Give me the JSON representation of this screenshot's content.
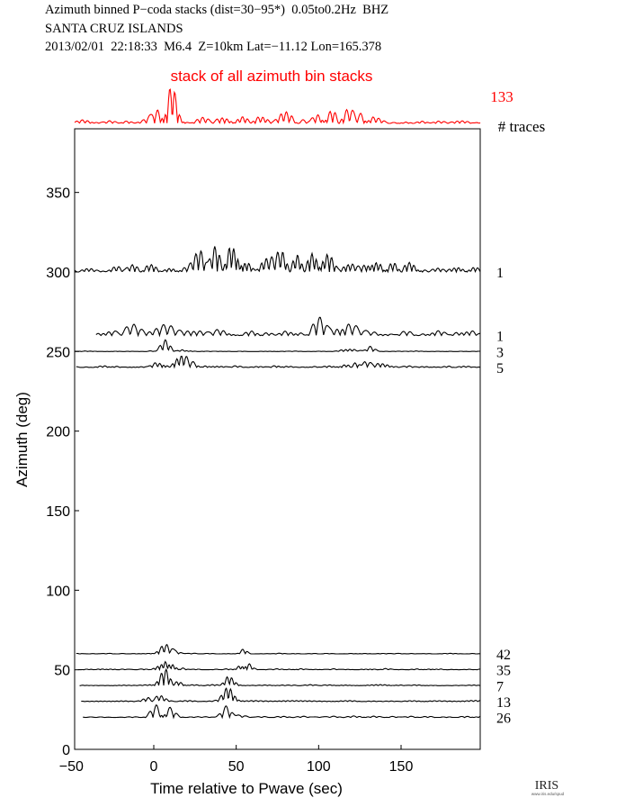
{
  "header": {
    "line1": "Azimuth binned P−coda stacks (dist=30−95*)  0.05to0.2Hz  BHZ",
    "line2": "SANTA CRUZ ISLANDS",
    "line3": "2013/02/01  22:18:33  M6.4  Z=10km Lat=−11.12 Lon=165.378"
  },
  "top_stack": {
    "label": "stack of all azimuth bin stacks",
    "count": "133",
    "count_header": "# traces",
    "color": "#ff0000"
  },
  "logo": {
    "text": "IRIS",
    "small": "www.iris.edu/spud"
  },
  "chart_data": {
    "type": "line",
    "title": "",
    "xlabel": "Time relative to Pwave (sec)",
    "ylabel": "Azimuth (deg)",
    "xlim": [
      -48,
      198
    ],
    "ylim": [
      0,
      390
    ],
    "xticks": [
      -50,
      0,
      50,
      100,
      150
    ],
    "yticks": [
      0,
      50,
      100,
      150,
      200,
      250,
      300,
      350
    ],
    "grid": false,
    "series": [
      {
        "azimuth": 300,
        "traces": "1",
        "x_start": -48
      },
      {
        "azimuth": 260,
        "traces": "1",
        "x_start": -35
      },
      {
        "azimuth": 250,
        "traces": "3",
        "x_start": -48
      },
      {
        "azimuth": 240,
        "traces": "5",
        "x_start": -47
      },
      {
        "azimuth": 60,
        "traces": "42",
        "x_start": -47
      },
      {
        "azimuth": 50,
        "traces": "35",
        "x_start": -46
      },
      {
        "azimuth": 40,
        "traces": "7",
        "x_start": -45
      },
      {
        "azimuth": 30,
        "traces": "13",
        "x_start": -44
      },
      {
        "azimuth": 20,
        "traces": "26",
        "x_start": -43
      }
    ],
    "trace_color": "#000000"
  }
}
